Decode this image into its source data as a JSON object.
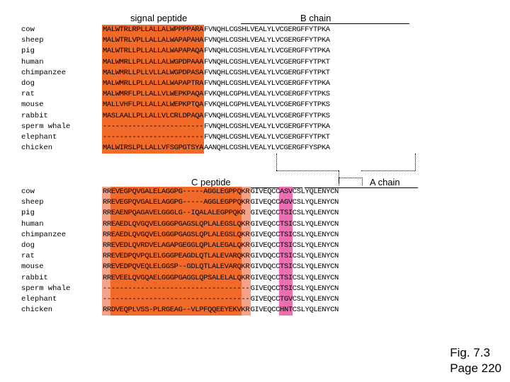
{
  "colors": {
    "orange": "#f26a2a",
    "salmon": "#f6a38a",
    "pink": "#ec6fb2"
  },
  "top": {
    "signal_label": "signal peptide",
    "b_label": "B chain",
    "rows": [
      {
        "species": "cow",
        "signal": "MALWTRLRPLLALLALWPPPPARA",
        "bchain": "FVNQHLCGSHLVEALYLVCGERGFFYTPKA"
      },
      {
        "species": "sheep",
        "signal": "MALWTRLVPLLALLALWAPAPAHA",
        "bchain": "FVNQHLCGSHLVEALYLVCGERGFFYTPKA"
      },
      {
        "species": "pig",
        "signal": "MALWTRLLPLLALLALWAPAPAQA",
        "bchain": "FVNQHLCGSHLVEALYLVCGERGFFYTPKA"
      },
      {
        "species": "human",
        "signal": "MALWMRLLPLLALLALWGPDPAAA",
        "bchain": "FVNQHLCGSHLVEALYLVCGERGFFYTPKT"
      },
      {
        "species": "chimpanzee",
        "signal": "MALWMRLLPLLVLLALWGPDPASA",
        "bchain": "FVNQHLCGSHLVEALYLVCGERGFFYTPKT"
      },
      {
        "species": "dog",
        "signal": "MALWMRLLPLLALLALWAPAPTRA",
        "bchain": "FVNQHLCGSHLVEALYLVCGERGFFYTPKA"
      },
      {
        "species": "rat",
        "signal": "MALWMRFLPLLALLVLWEPKPAQA",
        "bchain": "FVKQHLCGPHLVEALYLVCGERGFFYTPKS"
      },
      {
        "species": "mouse",
        "signal": "MALLVHFLPLLALLALWEPKPTQA",
        "bchain": "FVKQHLCGPHLVEALYLVCGERGFFYTPKS"
      },
      {
        "species": "rabbit",
        "signal": "MASLAALLPLLALLVLCRLDPAQA",
        "bchain": "FVNQHLCGSHLVEALYLVCGERGFFYTPKS"
      },
      {
        "species": "sperm whale",
        "signal": "------------------------",
        "bchain": "FVNQHLCGSHLVEALYLVCGERGFFYTPKA"
      },
      {
        "species": "elephant",
        "signal": "------------------------",
        "bchain": "FVNQHLCGSHLVEALYLVCGERGFFYTPKT"
      },
      {
        "species": "chicken",
        "signal": "MALWIRSLPLLALLVFSGPGTSYA",
        "bchain": "AANQHLCGSHLVEALYLVCGERGFFYSPKA"
      }
    ]
  },
  "bottom": {
    "c_label": "C peptide",
    "a_label": "A chain",
    "rows": [
      {
        "species": "cow",
        "cpep": "RREVEGPQVGALELAGGPG-----AGGLEGPPQKR",
        "achain": "GIVEQCCASVCSLYQLENYCN"
      },
      {
        "species": "sheep",
        "cpep": "RREVEGPQVGALELAGGPG-----AGGLEGPPQKR",
        "achain": "GIVEQCCAGVCSLYQLENYCN"
      },
      {
        "species": "pig",
        "cpep": "RREAENPQAGAVELGGGLG--IQALALEGPPQKR",
        "achain": "GIVEQCCTSICSLYQLENYCN"
      },
      {
        "species": "human",
        "cpep": "RREAEDLQVGQVELGGGPGAGSLQPLALEGSLQKR",
        "achain": "GIVEQCCTSICSLYQLENYCN"
      },
      {
        "species": "chimpanzee",
        "cpep": "RREAEDLQVGQVELGGGPGAGSLQPLALEGSLQKR",
        "achain": "GIVEQCCTSICSLYQLENYCN"
      },
      {
        "species": "dog",
        "cpep": "RREVEDLQVRDVELAGAPGEGGLQPLALEGALQKR",
        "achain": "GIVEQCCTSICSLYQLENYCN"
      },
      {
        "species": "rat",
        "cpep": "RREVEDPQVPQLELGGGPEAGDLQTLALEVARQKR",
        "achain": "GIVDQCCTSICSLYQLENYCN"
      },
      {
        "species": "mouse",
        "cpep": "RREVEDPQVEQLELGGSP--GDLQTLALEVARQKR",
        "achain": "GIVDQCCTSICSLYQLENYCN"
      },
      {
        "species": "rabbit",
        "cpep": "RREVEELQVGQAELGGGPGAGGLQPSALELALQKR",
        "achain": "GIVEQCCTSICSLYQLENYCN"
      },
      {
        "species": "sperm whale",
        "cpep": "-----------------------------------",
        "achain": "GIVEQCCTSICSLYQLENYCN"
      },
      {
        "species": "elephant",
        "cpep": "-----------------------------------",
        "achain": "GIVEQCCTGVCSLYQLENYCN"
      },
      {
        "species": "chicken",
        "cpep": "RRDVEQPLVSS-PLRGEAG--VLPFQQEEYEKVKR",
        "achain": "GIVEQCCHNTCSLYQLENYCN"
      }
    ]
  },
  "caption": {
    "line1": "Fig. 7.3",
    "line2": "Page 220"
  }
}
